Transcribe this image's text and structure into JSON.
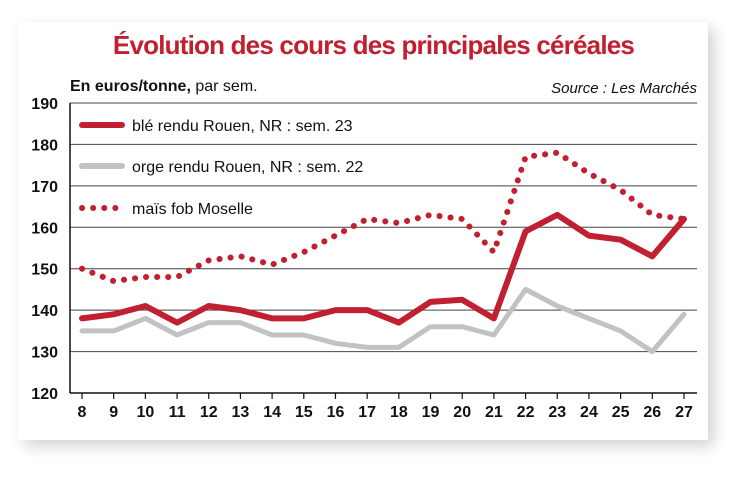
{
  "title": "Évolution des cours des principales céréales",
  "unit_bold": "En euros/tonne,",
  "unit_normal": " par sem.",
  "source": "Source : Les Marchés",
  "chart_data": {
    "type": "line",
    "title": "Évolution des cours des principales céréales",
    "ylabel": "En euros/tonne, par sem.",
    "xlabel": "",
    "x": [
      8,
      9,
      10,
      11,
      12,
      13,
      14,
      15,
      16,
      17,
      18,
      19,
      20,
      21,
      22,
      23,
      24,
      25,
      26,
      27
    ],
    "ylim": [
      120,
      190
    ],
    "yticks": [
      120,
      130,
      140,
      150,
      160,
      170,
      180,
      190
    ],
    "grid": true,
    "legend": "top-left",
    "series": [
      {
        "name": "blé rendu Rouen, NR : sem. 23",
        "style": "solid",
        "color": "#c0202f",
        "values": [
          138,
          139,
          141,
          137,
          141,
          140,
          138,
          138,
          140,
          140,
          137,
          142,
          142.5,
          138,
          159,
          163,
          158,
          157,
          153,
          162
        ]
      },
      {
        "name": "orge rendu Rouen, NR : sem. 22",
        "style": "solid",
        "color": "#c2c2c2",
        "values": [
          135,
          135,
          138,
          134,
          137,
          137,
          134,
          134,
          132,
          131,
          131,
          136,
          136,
          134,
          145,
          141,
          138,
          135,
          130,
          139
        ]
      },
      {
        "name": "maïs fob Moselle",
        "style": "dotted",
        "color": "#c0202f",
        "values": [
          150,
          147,
          148,
          148,
          152,
          153,
          151,
          154,
          158,
          162,
          161,
          163,
          162,
          154,
          177,
          178,
          173,
          169,
          163,
          162
        ]
      }
    ]
  }
}
